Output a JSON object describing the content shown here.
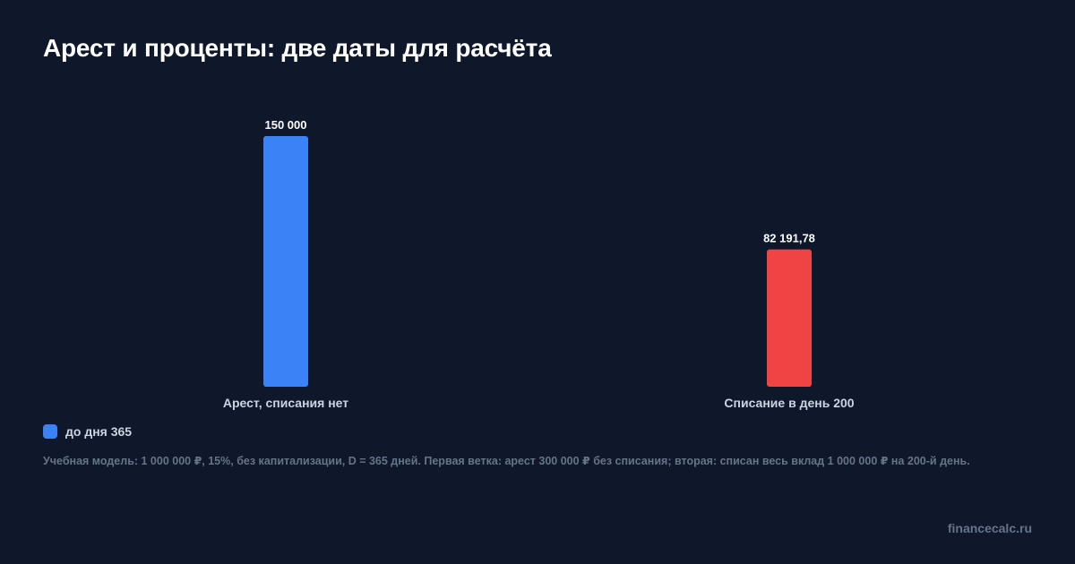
{
  "title": "Арест и проценты: две даты для расчёта",
  "chart_data": {
    "type": "bar",
    "title": "Арест и проценты: две даты для расчёта",
    "categories": [
      "Арест, списания нет",
      "Списание в день 200"
    ],
    "series": [
      {
        "name": "до дня 365",
        "values": [
          150000,
          82191.78
        ],
        "value_labels": [
          "150 000",
          "82 191,78"
        ],
        "colors": [
          "#3b82f6",
          "#ef4444"
        ]
      }
    ],
    "xlabel": "",
    "ylabel": "",
    "ylim": [
      0,
      150000
    ],
    "grid": false,
    "legend_position": "bottom-left"
  },
  "legend": {
    "label": "до дня 365",
    "color": "#3b82f6"
  },
  "note": "Учебная модель: 1 000 000 ₽, 15%, без капитализации, D = 365 дней. Первая ветка: арест 300 000 ₽ без списания; вторая: списан весь вклад 1 000 000 ₽ на 200-й день.",
  "site": "financecalc.ru"
}
